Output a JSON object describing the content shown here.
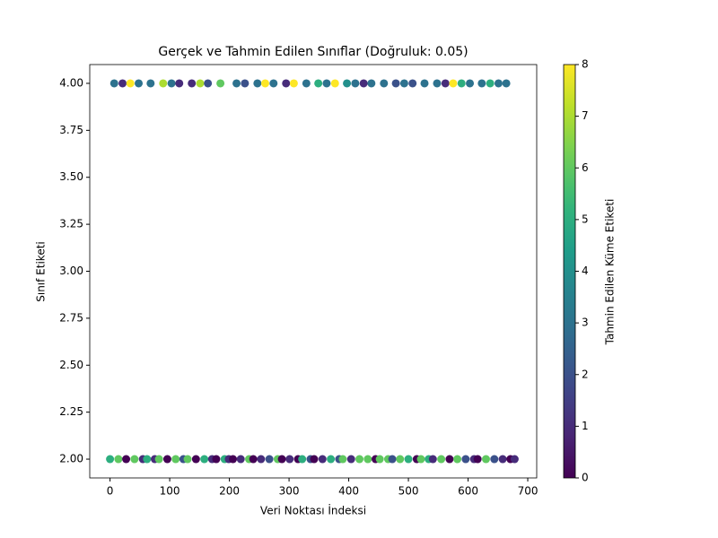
{
  "chart_data": {
    "type": "scatter",
    "title": "Gerçek ve Tahmin Edilen Sınıflar (Doğruluk: 0.05)",
    "xlabel": "Veri Noktası İndeksi",
    "ylabel": "Sınıf Etiketi",
    "colorbar_label": "Tahmin Edilen Küme Etiketi",
    "colormap": "viridis",
    "xlim": [
      -34,
      715
    ],
    "ylim": [
      1.9,
      4.1
    ],
    "clim": [
      0,
      8
    ],
    "xticks": [
      0,
      100,
      200,
      300,
      400,
      500,
      600,
      700
    ],
    "yticks": [
      {
        "value": 2,
        "label": "2.00"
      },
      {
        "value": 2.25,
        "label": "2.25"
      },
      {
        "value": 2.5,
        "label": "2.50"
      },
      {
        "value": 2.75,
        "label": "2.75"
      },
      {
        "value": 3,
        "label": "3.00"
      },
      {
        "value": 3.25,
        "label": "3.25"
      },
      {
        "value": 3.5,
        "label": "3.50"
      },
      {
        "value": 3.75,
        "label": "3.75"
      },
      {
        "value": 4,
        "label": "4.00"
      }
    ],
    "cticks": [
      0,
      1,
      2,
      3,
      4,
      5,
      6,
      7,
      8
    ],
    "series": [
      {
        "x": [
          0,
          7,
          14,
          21,
          27,
          34,
          41,
          48,
          55,
          62,
          68,
          75,
          82,
          89,
          96,
          103,
          110,
          116,
          123,
          130,
          137,
          144,
          151,
          158,
          164,
          171,
          178,
          185,
          192,
          199,
          206,
          212,
          219,
          226,
          233,
          240,
          247,
          253,
          260,
          267,
          274,
          281,
          288,
          295,
          301,
          308,
          315,
          322,
          329,
          336,
          342,
          349,
          356,
          363,
          370,
          377,
          384,
          390,
          397,
          404,
          411,
          418,
          425,
          432,
          438,
          445,
          452,
          459,
          466,
          473,
          479,
          486,
          493,
          500,
          507,
          514,
          521,
          527,
          534,
          541,
          548,
          555,
          562,
          569,
          575,
          582,
          589,
          596,
          603,
          610,
          616,
          623,
          630,
          637,
          644,
          651,
          658,
          664,
          671,
          678
        ],
        "values": [
          2,
          4,
          2,
          4,
          2,
          4,
          2,
          4,
          2,
          2,
          4,
          2,
          2,
          4,
          2,
          4,
          2,
          4,
          2,
          2,
          4,
          2,
          4,
          2,
          4,
          2,
          2,
          4,
          2,
          2,
          2,
          4,
          2,
          4,
          2,
          2,
          4,
          2,
          4,
          2,
          4,
          2,
          2,
          4,
          2,
          4,
          2,
          2,
          4,
          2,
          2,
          4,
          2,
          4,
          2,
          4,
          2,
          2,
          4,
          2,
          4,
          2,
          4,
          2,
          4,
          2,
          2,
          4,
          2,
          2,
          4,
          2,
          4,
          2,
          4,
          2,
          2,
          4,
          2,
          2,
          4,
          2,
          4,
          2,
          4,
          2,
          4,
          2,
          4,
          2,
          2,
          4,
          2,
          4,
          2,
          4,
          2,
          4,
          2,
          2
        ],
        "c": [
          5,
          3,
          6,
          1,
          0,
          8,
          6,
          3,
          1,
          5,
          3,
          1,
          6,
          7,
          0,
          3,
          6,
          1,
          2,
          6,
          1,
          0,
          7,
          5,
          2,
          1,
          0,
          6,
          5,
          1,
          0,
          3,
          1,
          2,
          6,
          0,
          3,
          1,
          8,
          2,
          3,
          6,
          0,
          1,
          1,
          8,
          0,
          5,
          3,
          2,
          0,
          5,
          1,
          3,
          5,
          8,
          2,
          6,
          4,
          1,
          3,
          6,
          1,
          6,
          3,
          0,
          6,
          3,
          6,
          2,
          2,
          6,
          3,
          5,
          2,
          0,
          6,
          3,
          5,
          1,
          3,
          6,
          1,
          0,
          8,
          6,
          5,
          2,
          3,
          1,
          0,
          3,
          6,
          5,
          2,
          3,
          1,
          3,
          0,
          1
        ]
      }
    ]
  }
}
